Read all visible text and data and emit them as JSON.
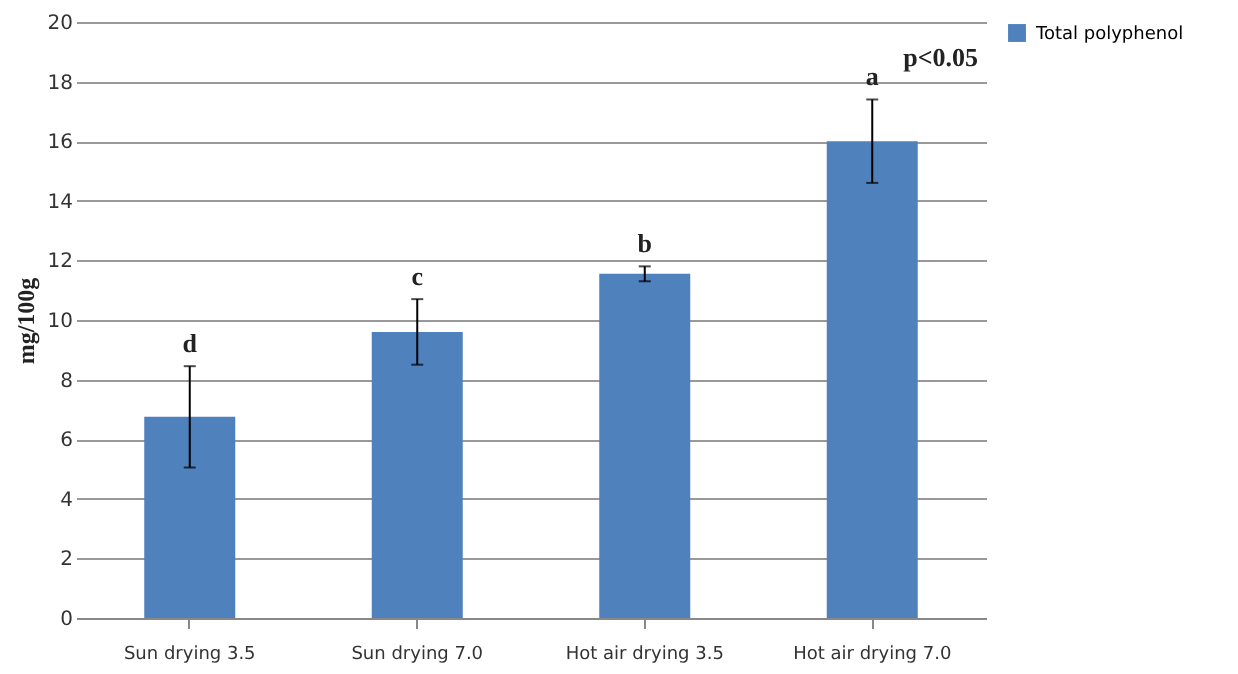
{
  "chart_data": {
    "type": "bar",
    "ylabel": "mg/100g",
    "categories": [
      "Sun drying 3.5",
      "Sun drying 7.0",
      "Hot air drying 3.5",
      "Hot air drying 7.0"
    ],
    "series": [
      {
        "name": "Total polyphenol",
        "color": "#4f81bd",
        "values": [
          6.75,
          9.6,
          11.55,
          16.0
        ],
        "errors": [
          1.7,
          1.1,
          0.25,
          1.4
        ]
      }
    ],
    "ylim": [
      0,
      20
    ],
    "yticks": [
      0,
      2,
      4,
      6,
      8,
      10,
      12,
      14,
      16,
      18,
      20
    ],
    "grid": "y",
    "legend": "right",
    "annotations": [
      {
        "text": "d",
        "x": "Sun drying 3.5",
        "y": 8.45
      },
      {
        "text": "c",
        "x": "Sun drying 7.0",
        "y": 10.7
      },
      {
        "text": "b",
        "x": "Hot air drying 3.5",
        "y": 11.8
      },
      {
        "text": "a",
        "x": "Hot air drying 7.0",
        "y": 17.4
      },
      "p<0.05"
    ]
  }
}
